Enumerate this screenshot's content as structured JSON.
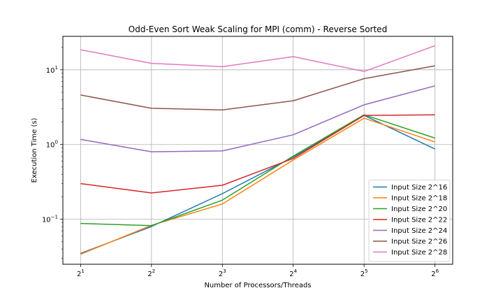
{
  "chart_data": {
    "type": "line",
    "title": "Odd-Even Sort Weak Scaling for MPI (comm) - Reverse Sorted",
    "xlabel": "Number of Processors/Threads",
    "ylabel": "Execution Time (s)",
    "yscale": "log",
    "ylim": [
      0.025,
      28
    ],
    "grid": true,
    "legend_position": "lower-right",
    "x": [
      2,
      4,
      8,
      16,
      32,
      64
    ],
    "x_tick_labels": [
      {
        "base": "2",
        "exp": "1"
      },
      {
        "base": "2",
        "exp": "2"
      },
      {
        "base": "2",
        "exp": "3"
      },
      {
        "base": "2",
        "exp": "4"
      },
      {
        "base": "2",
        "exp": "5"
      },
      {
        "base": "2",
        "exp": "6"
      }
    ],
    "y_tick_labels": [
      {
        "value": 0.1,
        "base": "10",
        "exp": "−1"
      },
      {
        "value": 1,
        "base": "10",
        "exp": "0"
      },
      {
        "value": 10,
        "base": "10",
        "exp": "1"
      }
    ],
    "series": [
      {
        "name": "Input Size 2^16",
        "color": "#1f77b4",
        "values": [
          0.035,
          0.08,
          0.22,
          0.68,
          2.45,
          0.87
        ]
      },
      {
        "name": "Input Size 2^18",
        "color": "#ff7f0e",
        "values": [
          0.034,
          0.083,
          0.16,
          0.62,
          2.25,
          1.08
        ]
      },
      {
        "name": "Input Size 2^20",
        "color": "#2ca02c",
        "values": [
          0.088,
          0.082,
          0.18,
          0.7,
          2.5,
          1.22
        ]
      },
      {
        "name": "Input Size 2^22",
        "color": "#d62728",
        "values": [
          0.3,
          0.225,
          0.285,
          0.65,
          2.45,
          2.5
        ]
      },
      {
        "name": "Input Size 2^24",
        "color": "#9467bd",
        "values": [
          1.17,
          0.8,
          0.82,
          1.35,
          3.4,
          6.1
        ]
      },
      {
        "name": "Input Size 2^26",
        "color": "#8c564b",
        "values": [
          4.6,
          3.05,
          2.9,
          3.85,
          7.6,
          11.3
        ]
      },
      {
        "name": "Input Size 2^28",
        "color": "#e377c2",
        "values": [
          18.5,
          12.2,
          11.0,
          15.0,
          9.5,
          21.0
        ]
      }
    ]
  }
}
